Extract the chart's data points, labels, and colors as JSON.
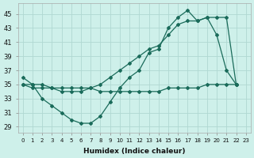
{
  "xlabel": "Humidex (Indice chaleur)",
  "background_color": "#cef0ea",
  "grid_color": "#b0d8d2",
  "line_color": "#1a6b5a",
  "x_ticks": [
    0,
    1,
    2,
    3,
    4,
    5,
    6,
    7,
    8,
    9,
    10,
    11,
    12,
    13,
    14,
    15,
    16,
    17,
    18,
    19,
    20,
    21,
    22,
    23
  ],
  "y_ticks": [
    29,
    31,
    33,
    35,
    37,
    39,
    41,
    43,
    45
  ],
  "ylim": [
    28.2,
    46.5
  ],
  "xlim": [
    -0.5,
    23.5
  ],
  "series_jagged_x": [
    0,
    1,
    2,
    3,
    4,
    5,
    6,
    7,
    8,
    9,
    10,
    11,
    12,
    13,
    14,
    15,
    16,
    17,
    18,
    19,
    20,
    21,
    22
  ],
  "series_jagged_y": [
    36,
    35,
    33,
    32,
    31,
    30,
    29.5,
    29.5,
    30.5,
    32.5,
    34.5,
    36,
    37,
    39.5,
    40,
    43,
    44.5,
    45.5,
    44,
    44.5,
    42,
    37,
    35
  ],
  "series_trend_x": [
    0,
    1,
    2,
    3,
    4,
    5,
    6,
    7,
    8,
    9,
    10,
    11,
    12,
    13,
    14,
    15,
    16,
    17,
    18,
    19,
    20,
    21,
    22
  ],
  "series_trend_y": [
    35,
    34.5,
    34.5,
    34.5,
    34.5,
    34.5,
    34.5,
    34.5,
    35,
    36,
    37,
    38,
    39,
    40,
    40.5,
    42,
    43.5,
    44,
    44,
    44.5,
    44.5,
    44.5,
    35
  ],
  "series_flat_x": [
    0,
    1,
    2,
    3,
    4,
    5,
    6,
    7,
    8,
    9,
    10,
    11,
    12,
    13,
    14,
    15,
    16,
    17,
    18,
    19,
    20,
    21,
    22
  ],
  "series_flat_y": [
    35,
    35,
    35,
    34.5,
    34,
    34,
    34,
    34.5,
    34,
    34,
    34,
    34,
    34,
    34,
    34,
    34.5,
    34.5,
    34.5,
    34.5,
    35,
    35,
    35,
    35
  ]
}
